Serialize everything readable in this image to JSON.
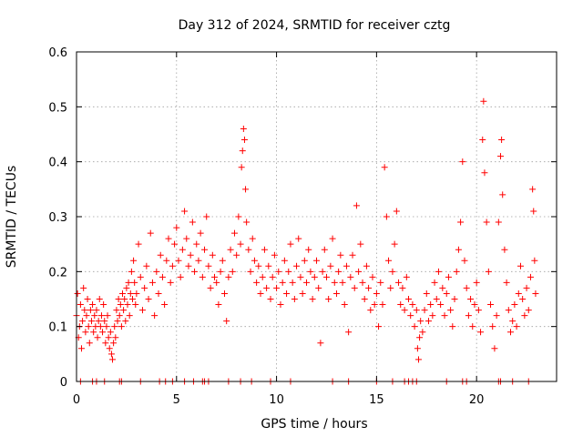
{
  "chart_data": {
    "type": "scatter",
    "title": "Day 312 of 2024, SRMTID for receiver cztg",
    "xlabel": "GPS time / hours",
    "ylabel": "SRMTID / TECUs",
    "xlim": [
      0,
      24
    ],
    "ylim": [
      0,
      0.6
    ],
    "xticks": [
      0,
      5,
      10,
      15,
      20
    ],
    "xtick_labels": [
      "0",
      "5",
      "10",
      "15",
      "20"
    ],
    "yticks": [
      0,
      0.1,
      0.2,
      0.3,
      0.4,
      0.5,
      0.6
    ],
    "ytick_labels": [
      "0",
      "0.1",
      "0.2",
      "0.3",
      "0.4",
      "0.5",
      "0.6"
    ],
    "grid": true,
    "marker": "+",
    "series": [
      {
        "name": "SRMTID",
        "color": "#ff0000",
        "points": [
          [
            0.0,
            0.12
          ],
          [
            0.05,
            0.16
          ],
          [
            0.1,
            0.08
          ],
          [
            0.15,
            0.1
          ],
          [
            0.2,
            0.14
          ],
          [
            0.25,
            0.06
          ],
          [
            0.3,
            0.11
          ],
          [
            0.35,
            0.17
          ],
          [
            0.4,
            0.13
          ],
          [
            0.45,
            0.09
          ],
          [
            0.5,
            0.12
          ],
          [
            0.55,
            0.15
          ],
          [
            0.6,
            0.1
          ],
          [
            0.65,
            0.07
          ],
          [
            0.7,
            0.13
          ],
          [
            0.75,
            0.11
          ],
          [
            0.8,
            0.14
          ],
          [
            0.85,
            0.09
          ],
          [
            0.9,
            0.12
          ],
          [
            0.95,
            0.1
          ],
          [
            1.0,
            0.13
          ],
          [
            1.05,
            0.08
          ],
          [
            1.1,
            0.11
          ],
          [
            1.15,
            0.15
          ],
          [
            1.2,
            0.1
          ],
          [
            1.25,
            0.12
          ],
          [
            1.3,
            0.09
          ],
          [
            1.35,
            0.14
          ],
          [
            1.4,
            0.11
          ],
          [
            1.45,
            0.07
          ],
          [
            1.5,
            0.1
          ],
          [
            1.55,
            0.12
          ],
          [
            1.6,
            0.08
          ],
          [
            1.65,
            0.06
          ],
          [
            1.7,
            0.09
          ],
          [
            1.75,
            0.05
          ],
          [
            1.8,
            0.04
          ],
          [
            1.85,
            0.07
          ],
          [
            1.9,
            0.1
          ],
          [
            1.95,
            0.08
          ],
          [
            2.0,
            0.13
          ],
          [
            2.05,
            0.11
          ],
          [
            2.1,
            0.15
          ],
          [
            2.15,
            0.12
          ],
          [
            2.2,
            0.14
          ],
          [
            2.25,
            0.1
          ],
          [
            2.3,
            0.16
          ],
          [
            2.35,
            0.13
          ],
          [
            2.4,
            0.15
          ],
          [
            2.45,
            0.11
          ],
          [
            2.5,
            0.17
          ],
          [
            2.55,
            0.14
          ],
          [
            2.6,
            0.18
          ],
          [
            2.65,
            0.12
          ],
          [
            2.7,
            0.16
          ],
          [
            2.75,
            0.2
          ],
          [
            2.8,
            0.15
          ],
          [
            2.85,
            0.22
          ],
          [
            2.9,
            0.18
          ],
          [
            2.95,
            0.14
          ],
          [
            3.0,
            0.16
          ],
          [
            3.1,
            0.25
          ],
          [
            3.2,
            0.19
          ],
          [
            3.3,
            0.13
          ],
          [
            3.4,
            0.17
          ],
          [
            3.5,
            0.21
          ],
          [
            3.6,
            0.15
          ],
          [
            3.7,
            0.27
          ],
          [
            3.8,
            0.18
          ],
          [
            3.9,
            0.12
          ],
          [
            4.0,
            0.2
          ],
          [
            4.1,
            0.16
          ],
          [
            4.2,
            0.23
          ],
          [
            4.3,
            0.19
          ],
          [
            4.4,
            0.14
          ],
          [
            4.5,
            0.22
          ],
          [
            4.6,
            0.26
          ],
          [
            4.7,
            0.18
          ],
          [
            4.8,
            0.21
          ],
          [
            4.9,
            0.25
          ],
          [
            5.0,
            0.28
          ],
          [
            5.1,
            0.22
          ],
          [
            5.2,
            0.19
          ],
          [
            5.3,
            0.24
          ],
          [
            5.4,
            0.31
          ],
          [
            5.5,
            0.26
          ],
          [
            5.6,
            0.21
          ],
          [
            5.7,
            0.23
          ],
          [
            5.8,
            0.29
          ],
          [
            5.9,
            0.2
          ],
          [
            6.0,
            0.25
          ],
          [
            6.1,
            0.22
          ],
          [
            6.2,
            0.27
          ],
          [
            6.3,
            0.19
          ],
          [
            6.4,
            0.24
          ],
          [
            6.5,
            0.3
          ],
          [
            6.6,
            0.21
          ],
          [
            6.7,
            0.17
          ],
          [
            6.8,
            0.23
          ],
          [
            6.9,
            0.19
          ],
          [
            7.0,
            0.18
          ],
          [
            7.1,
            0.14
          ],
          [
            7.2,
            0.2
          ],
          [
            7.3,
            0.22
          ],
          [
            7.4,
            0.16
          ],
          [
            7.5,
            0.11
          ],
          [
            7.6,
            0.19
          ],
          [
            7.7,
            0.24
          ],
          [
            7.8,
            0.2
          ],
          [
            7.9,
            0.27
          ],
          [
            8.0,
            0.23
          ],
          [
            8.1,
            0.3
          ],
          [
            8.2,
            0.25
          ],
          [
            8.25,
            0.39
          ],
          [
            8.3,
            0.42
          ],
          [
            8.35,
            0.46
          ],
          [
            8.4,
            0.44
          ],
          [
            8.45,
            0.35
          ],
          [
            8.5,
            0.29
          ],
          [
            8.6,
            0.24
          ],
          [
            8.7,
            0.2
          ],
          [
            8.8,
            0.26
          ],
          [
            8.9,
            0.22
          ],
          [
            9.0,
            0.18
          ],
          [
            9.1,
            0.21
          ],
          [
            9.2,
            0.16
          ],
          [
            9.3,
            0.19
          ],
          [
            9.4,
            0.24
          ],
          [
            9.5,
            0.17
          ],
          [
            9.6,
            0.21
          ],
          [
            9.7,
            0.15
          ],
          [
            9.8,
            0.19
          ],
          [
            9.9,
            0.23
          ],
          [
            10.0,
            0.17
          ],
          [
            10.1,
            0.2
          ],
          [
            10.2,
            0.14
          ],
          [
            10.3,
            0.18
          ],
          [
            10.4,
            0.22
          ],
          [
            10.5,
            0.16
          ],
          [
            10.6,
            0.2
          ],
          [
            10.7,
            0.25
          ],
          [
            10.8,
            0.18
          ],
          [
            10.9,
            0.15
          ],
          [
            11.0,
            0.21
          ],
          [
            11.1,
            0.26
          ],
          [
            11.2,
            0.19
          ],
          [
            11.3,
            0.16
          ],
          [
            11.4,
            0.22
          ],
          [
            11.5,
            0.18
          ],
          [
            11.6,
            0.24
          ],
          [
            11.7,
            0.2
          ],
          [
            11.8,
            0.15
          ],
          [
            11.9,
            0.19
          ],
          [
            12.0,
            0.22
          ],
          [
            12.1,
            0.17
          ],
          [
            12.2,
            0.07
          ],
          [
            12.3,
            0.2
          ],
          [
            12.4,
            0.24
          ],
          [
            12.5,
            0.19
          ],
          [
            12.6,
            0.15
          ],
          [
            12.7,
            0.21
          ],
          [
            12.8,
            0.26
          ],
          [
            12.9,
            0.18
          ],
          [
            13.0,
            0.16
          ],
          [
            13.1,
            0.2
          ],
          [
            13.2,
            0.23
          ],
          [
            13.3,
            0.18
          ],
          [
            13.4,
            0.14
          ],
          [
            13.5,
            0.21
          ],
          [
            13.6,
            0.09
          ],
          [
            13.7,
            0.19
          ],
          [
            13.8,
            0.23
          ],
          [
            13.9,
            0.17
          ],
          [
            14.0,
            0.32
          ],
          [
            14.1,
            0.2
          ],
          [
            14.2,
            0.25
          ],
          [
            14.3,
            0.18
          ],
          [
            14.4,
            0.15
          ],
          [
            14.5,
            0.21
          ],
          [
            14.6,
            0.17
          ],
          [
            14.7,
            0.13
          ],
          [
            14.8,
            0.19
          ],
          [
            14.9,
            0.14
          ],
          [
            15.0,
            0.16
          ],
          [
            15.1,
            0.1
          ],
          [
            15.2,
            0.18
          ],
          [
            15.3,
            0.14
          ],
          [
            15.4,
            0.39
          ],
          [
            15.5,
            0.3
          ],
          [
            15.6,
            0.22
          ],
          [
            15.7,
            0.17
          ],
          [
            15.8,
            0.2
          ],
          [
            15.9,
            0.25
          ],
          [
            16.0,
            0.31
          ],
          [
            16.1,
            0.18
          ],
          [
            16.2,
            0.14
          ],
          [
            16.3,
            0.17
          ],
          [
            16.4,
            0.13
          ],
          [
            16.5,
            0.19
          ],
          [
            16.6,
            0.15
          ],
          [
            16.7,
            0.12
          ],
          [
            16.8,
            0.14
          ],
          [
            16.9,
            0.1
          ],
          [
            17.0,
            0.13
          ],
          [
            17.05,
            0.06
          ],
          [
            17.1,
            0.04
          ],
          [
            17.15,
            0.08
          ],
          [
            17.2,
            0.11
          ],
          [
            17.3,
            0.09
          ],
          [
            17.4,
            0.13
          ],
          [
            17.5,
            0.16
          ],
          [
            17.6,
            0.11
          ],
          [
            17.7,
            0.14
          ],
          [
            17.8,
            0.12
          ],
          [
            17.9,
            0.18
          ],
          [
            18.0,
            0.15
          ],
          [
            18.1,
            0.2
          ],
          [
            18.2,
            0.14
          ],
          [
            18.3,
            0.17
          ],
          [
            18.4,
            0.12
          ],
          [
            18.5,
            0.16
          ],
          [
            18.6,
            0.19
          ],
          [
            18.7,
            0.13
          ],
          [
            18.8,
            0.1
          ],
          [
            18.9,
            0.15
          ],
          [
            19.0,
            0.2
          ],
          [
            19.1,
            0.24
          ],
          [
            19.2,
            0.29
          ],
          [
            19.3,
            0.4
          ],
          [
            19.4,
            0.22
          ],
          [
            19.5,
            0.17
          ],
          [
            19.6,
            0.12
          ],
          [
            19.7,
            0.15
          ],
          [
            19.8,
            0.1
          ],
          [
            19.9,
            0.14
          ],
          [
            20.0,
            0.18
          ],
          [
            20.1,
            0.13
          ],
          [
            20.2,
            0.09
          ],
          [
            20.3,
            0.44
          ],
          [
            20.35,
            0.51
          ],
          [
            20.4,
            0.38
          ],
          [
            20.5,
            0.29
          ],
          [
            20.6,
            0.2
          ],
          [
            20.7,
            0.14
          ],
          [
            20.8,
            0.1
          ],
          [
            20.9,
            0.06
          ],
          [
            21.0,
            0.12
          ],
          [
            21.1,
            0.29
          ],
          [
            21.2,
            0.41
          ],
          [
            21.25,
            0.44
          ],
          [
            21.3,
            0.34
          ],
          [
            21.4,
            0.24
          ],
          [
            21.5,
            0.18
          ],
          [
            21.6,
            0.13
          ],
          [
            21.7,
            0.09
          ],
          [
            21.8,
            0.11
          ],
          [
            21.9,
            0.14
          ],
          [
            22.0,
            0.1
          ],
          [
            22.1,
            0.16
          ],
          [
            22.2,
            0.21
          ],
          [
            22.3,
            0.15
          ],
          [
            22.4,
            0.12
          ],
          [
            22.5,
            0.17
          ],
          [
            22.6,
            0.13
          ],
          [
            22.7,
            0.19
          ],
          [
            22.8,
            0.35
          ],
          [
            22.85,
            0.31
          ],
          [
            22.9,
            0.22
          ],
          [
            22.95,
            0.16
          ]
        ],
        "zero_values_at_hours": [
          0.2,
          0.8,
          1.0,
          1.4,
          2.15,
          2.25,
          3.2,
          4.15,
          4.45,
          4.8,
          5.4,
          5.85,
          6.3,
          6.4,
          6.6,
          7.6,
          8.2,
          8.75,
          9.7,
          10.7,
          12.8,
          13.6,
          15.0,
          15.8,
          16.4,
          16.6,
          16.8,
          17.0,
          18.5,
          19.3,
          19.5,
          21.1,
          21.2,
          21.8,
          22.6
        ]
      }
    ]
  }
}
